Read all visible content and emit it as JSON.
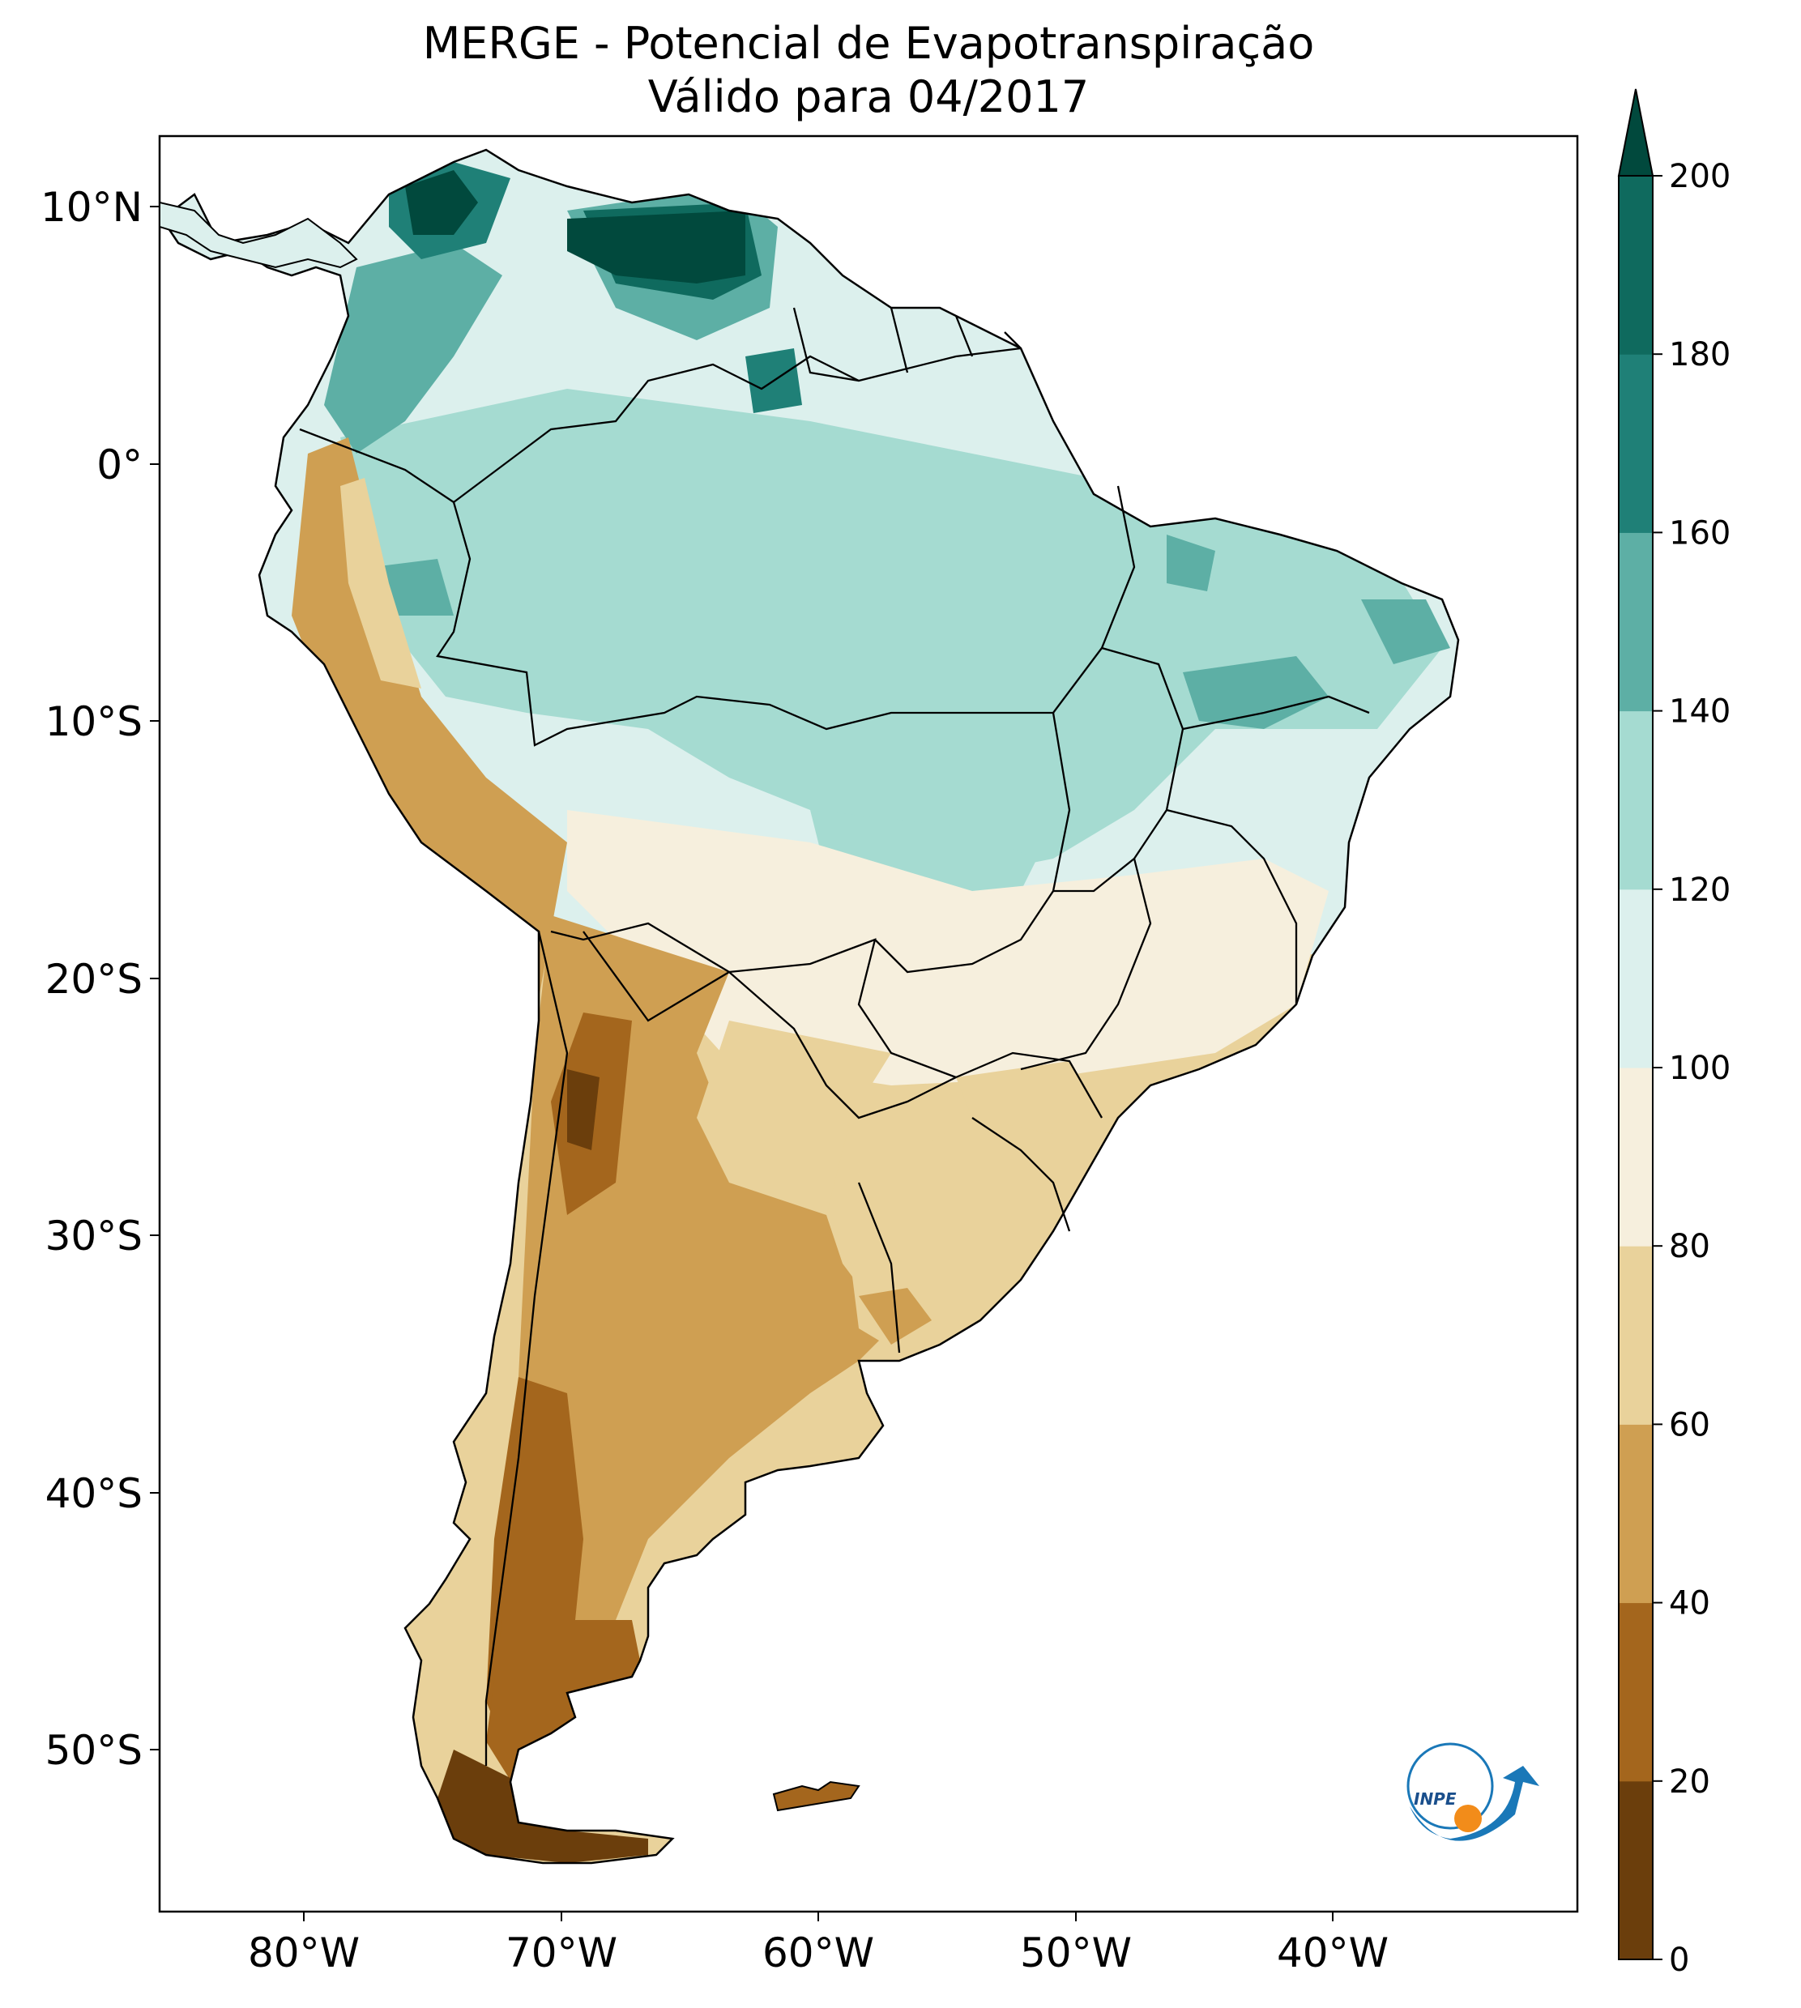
{
  "title": {
    "line1": "MERGE - Potencial de Evapotranspiração",
    "line2": "Válido para 04/2017"
  },
  "axes": {
    "lat_labels": [
      "10°N",
      "0°",
      "10°S",
      "20°S",
      "30°S",
      "40°S",
      "50°S"
    ],
    "lon_labels": [
      "80°W",
      "70°W",
      "60°W",
      "50°W",
      "40°W"
    ]
  },
  "colorbar": {
    "ticks": [
      "0",
      "20",
      "40",
      "60",
      "80",
      "100",
      "120",
      "140",
      "160",
      "180",
      "200"
    ],
    "colors": [
      "#6b3e0c",
      "#a4661d",
      "#cf9f52",
      "#e9d29b",
      "#f6efdd",
      "#dcf0ed",
      "#a5dbd1",
      "#5dafa5",
      "#1f8077",
      "#0f6a5e",
      "#01493d"
    ],
    "extend": "max"
  },
  "logo": {
    "text": "INPE"
  },
  "map_colors": {
    "dark_brown": "#6b3e0c",
    "brown": "#a4661d",
    "tan": "#cf9f52",
    "light_tan": "#e9d29b",
    "cream": "#f6efdd",
    "pale_teal": "#dcf0ed",
    "light_teal": "#a5dbd1",
    "teal": "#5dafa5",
    "dark_teal": "#1f8077",
    "darkest_teal": "#01493d"
  }
}
